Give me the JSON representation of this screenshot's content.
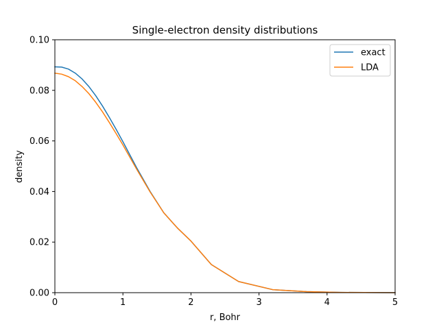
{
  "chart_data": {
    "type": "line",
    "title": "Single-electron density distributions",
    "xlabel": "r, Bohr",
    "ylabel": "density",
    "xlim": [
      0,
      5
    ],
    "ylim": [
      0,
      0.1
    ],
    "xticks": [
      0,
      1,
      2,
      3,
      4,
      5
    ],
    "xtick_labels": [
      "0",
      "1",
      "2",
      "3",
      "4",
      "5"
    ],
    "yticks": [
      0,
      0.02,
      0.04,
      0.06,
      0.08,
      0.1
    ],
    "ytick_labels": [
      "0.00",
      "0.02",
      "0.04",
      "0.06",
      "0.08",
      "0.10"
    ],
    "grid": false,
    "legend_position": "upper-right",
    "series": [
      {
        "name": "exact",
        "color": "#1f77b4",
        "x": [
          0,
          0.1,
          0.2,
          0.3,
          0.4,
          0.5,
          0.6,
          0.7,
          0.8,
          0.9,
          1.0,
          1.2,
          1.4,
          1.6,
          1.8,
          2.0,
          2.3,
          2.7,
          3.2,
          3.7,
          4.2,
          5.0
        ],
        "y": [
          0.0893,
          0.0892,
          0.0884,
          0.0868,
          0.0845,
          0.0815,
          0.0779,
          0.0738,
          0.0693,
          0.0646,
          0.0597,
          0.0495,
          0.04,
          0.0316,
          0.0256,
          0.0204,
          0.0111,
          0.0044,
          0.0012,
          0.0004,
          0.0001,
          0.0
        ]
      },
      {
        "name": "LDA",
        "color": "#ff7f0e",
        "x": [
          0,
          0.1,
          0.2,
          0.3,
          0.4,
          0.5,
          0.6,
          0.7,
          0.8,
          0.9,
          1.0,
          1.2,
          1.4,
          1.6,
          1.8,
          2.0,
          2.3,
          2.7,
          3.2,
          3.7,
          4.2,
          5.0
        ],
        "y": [
          0.0868,
          0.0864,
          0.0854,
          0.0838,
          0.0815,
          0.0787,
          0.0753,
          0.0715,
          0.0673,
          0.0629,
          0.0584,
          0.0489,
          0.0398,
          0.0316,
          0.0256,
          0.0204,
          0.0111,
          0.0044,
          0.0012,
          0.0004,
          0.0001,
          0.0
        ]
      }
    ]
  }
}
